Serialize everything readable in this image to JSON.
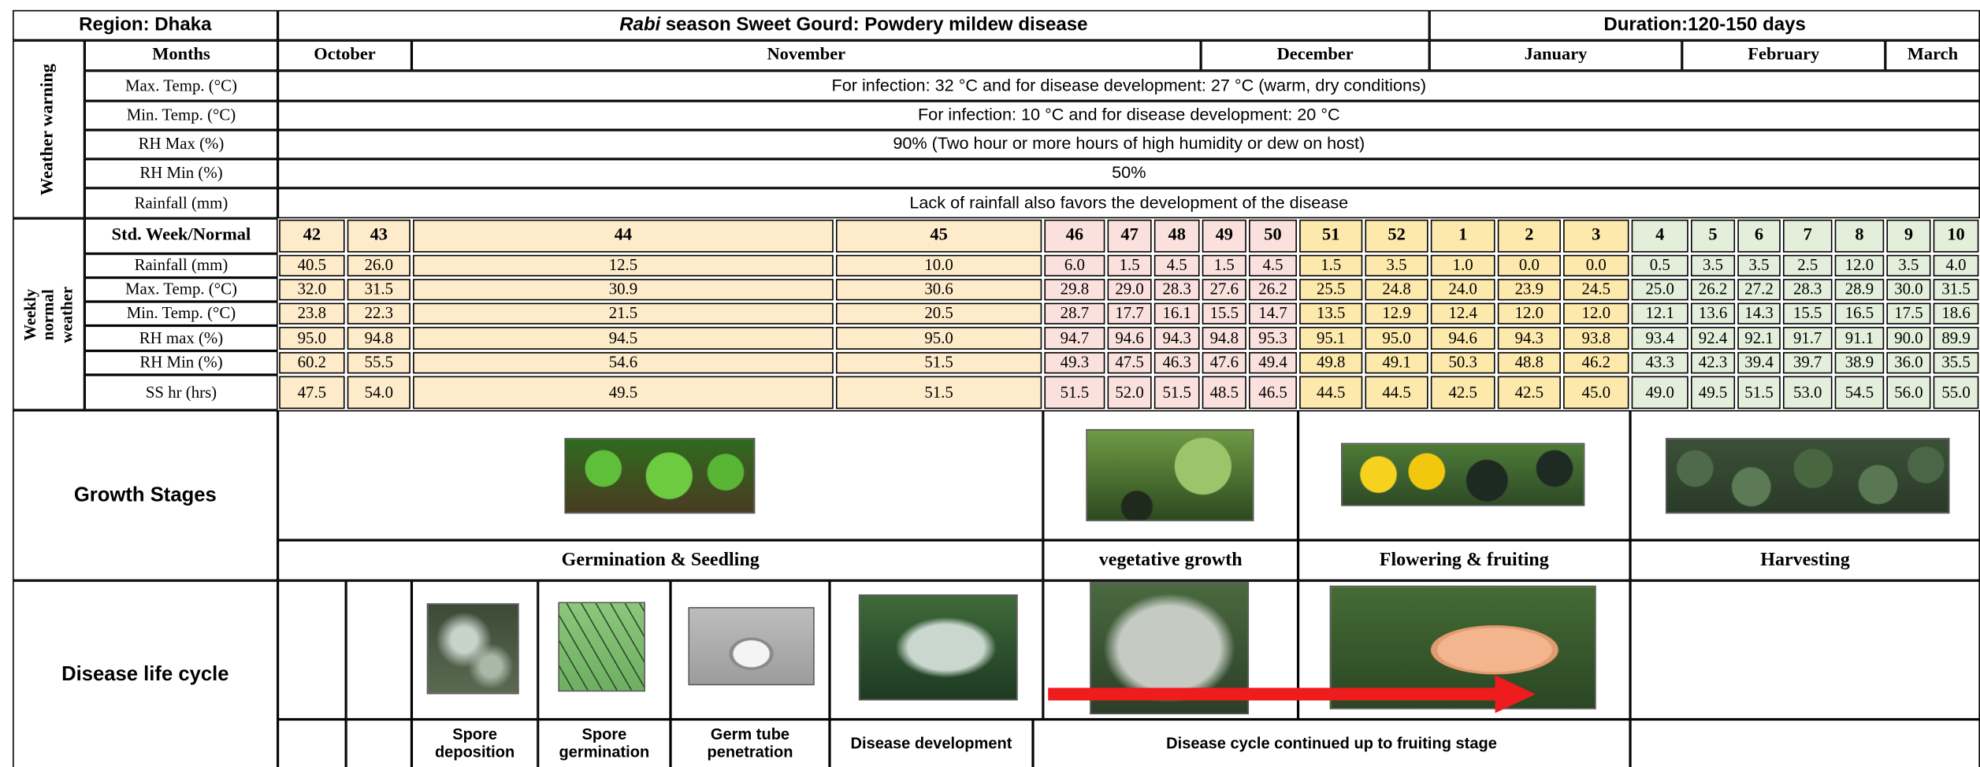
{
  "header": {
    "region": "Region: Dhaka",
    "title_italic": "Rabi",
    "title": "season Sweet Gourd: Powdery mildew disease",
    "duration": "Duration:120-150 days"
  },
  "weather_warning": {
    "label": "Weather warning",
    "months_label": "Months",
    "months": [
      "October",
      "November",
      "December",
      "January",
      "February",
      "March"
    ],
    "rows": [
      {
        "param": "Max. Temp. (°C)",
        "text": "For infection: 32 °C and for disease development: 27 °C (warm, dry conditions)"
      },
      {
        "param": "Min. Temp. (°C)",
        "text": "For infection: 10 °C and for disease development: 20 °C"
      },
      {
        "param": "RH Max (%)",
        "text": "90% (Two hour or more hours of high humidity or dew on host)"
      },
      {
        "param": "RH Min (%)",
        "text": "50%"
      },
      {
        "param": "Rainfall (mm)",
        "text": "Lack of rainfall also favors the development of the disease"
      }
    ]
  },
  "weekly": {
    "label": "Weekly normal weather",
    "header_label": "Std. Week/Normal",
    "weeks": [
      "42",
      "43",
      "44",
      "45",
      "46",
      "47",
      "48",
      "49",
      "50",
      "51",
      "52",
      "1",
      "2",
      "3",
      "4",
      "5",
      "6",
      "7",
      "8",
      "9",
      "10"
    ],
    "rows": [
      {
        "param": "Rainfall (mm)",
        "values": [
          "40.5",
          "26.0",
          "12.5",
          "10.0",
          "6.0",
          "1.5",
          "4.5",
          "1.5",
          "4.5",
          "1.5",
          "3.5",
          "1.0",
          "0.0",
          "0.0",
          "0.5",
          "3.5",
          "3.5",
          "2.5",
          "12.0",
          "3.5",
          "4.0"
        ]
      },
      {
        "param": "Max. Temp. (°C)",
        "values": [
          "32.0",
          "31.5",
          "30.9",
          "30.6",
          "29.8",
          "29.0",
          "28.3",
          "27.6",
          "26.2",
          "25.5",
          "24.8",
          "24.0",
          "23.9",
          "24.5",
          "25.0",
          "26.2",
          "27.2",
          "28.3",
          "28.9",
          "30.0",
          "31.5"
        ]
      },
      {
        "param": "Min. Temp. (°C)",
        "values": [
          "23.8",
          "22.3",
          "21.5",
          "20.5",
          "28.7",
          "17.7",
          "16.1",
          "15.5",
          "14.7",
          "13.5",
          "12.9",
          "12.4",
          "12.0",
          "12.0",
          "12.1",
          "13.6",
          "14.3",
          "15.5",
          "16.5",
          "17.5",
          "18.6"
        ]
      },
      {
        "param": "RH max (%)",
        "values": [
          "95.0",
          "94.8",
          "94.5",
          "95.0",
          "94.7",
          "94.6",
          "94.3",
          "94.8",
          "95.3",
          "95.1",
          "95.0",
          "94.6",
          "94.3",
          "93.8",
          "93.4",
          "92.4",
          "92.1",
          "91.7",
          "91.1",
          "90.0",
          "89.9"
        ]
      },
      {
        "param": "RH Min (%)",
        "values": [
          "60.2",
          "55.5",
          "54.6",
          "51.5",
          "49.3",
          "47.5",
          "46.3",
          "47.6",
          "49.4",
          "49.8",
          "49.1",
          "50.3",
          "48.8",
          "46.2",
          "43.3",
          "42.3",
          "39.4",
          "39.7",
          "38.9",
          "36.0",
          "35.5"
        ]
      },
      {
        "param": "SS hr (hrs)",
        "values": [
          "47.5",
          "54.0",
          "49.5",
          "51.5",
          "51.5",
          "52.0",
          "51.5",
          "48.5",
          "46.5",
          "44.5",
          "44.5",
          "42.5",
          "42.5",
          "45.0",
          "49.0",
          "49.5",
          "51.5",
          "53.0",
          "54.5",
          "56.0",
          "55.0"
        ]
      }
    ]
  },
  "growth": {
    "label": "Growth Stages",
    "stages": [
      "Germination & Seedling",
      "vegetative growth",
      "Flowering & fruiting",
      "Harvesting"
    ]
  },
  "disease": {
    "label": "Disease life cycle",
    "stages": [
      "Spore deposition",
      "Spore germination",
      "Germ tube penetration",
      "Disease development",
      "Disease cycle continued up to fruiting stage"
    ]
  }
}
